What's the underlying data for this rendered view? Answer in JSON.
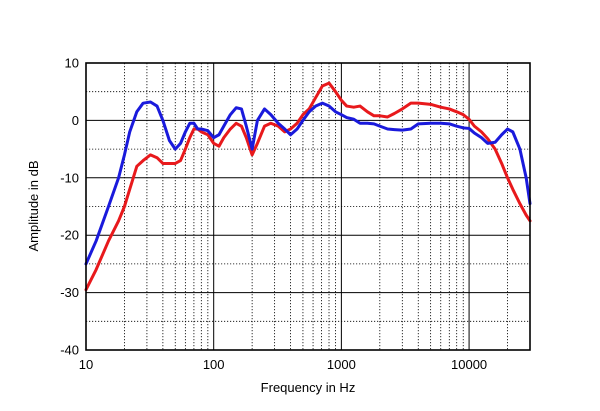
{
  "chart_data": {
    "type": "line",
    "xlabel": "Frequency in Hz",
    "ylabel": "Amplitude in dB",
    "x_scale": "log",
    "xlim": [
      10,
      30000
    ],
    "ylim": [
      -40,
      10
    ],
    "x_ticks": [
      10,
      100,
      1000,
      10000
    ],
    "x_tick_labels": [
      "10",
      "100",
      "1000",
      "10000"
    ],
    "y_ticks": [
      10,
      0,
      -10,
      -20,
      -30,
      -40
    ],
    "y_tick_labels": [
      "10",
      "0",
      "-10",
      "-20",
      "-30",
      "-40"
    ],
    "grid": true,
    "series": [
      {
        "color": "#e8191c",
        "x": [
          10,
          12,
          15,
          18,
          20,
          22,
          25,
          28,
          32,
          36,
          40,
          45,
          50,
          55,
          60,
          65,
          70,
          75,
          80,
          90,
          100,
          110,
          120,
          135,
          150,
          165,
          180,
          200,
          220,
          250,
          280,
          320,
          360,
          400,
          450,
          500,
          560,
          630,
          710,
          800,
          900,
          1000,
          1100,
          1250,
          1400,
          1600,
          1800,
          2000,
          2300,
          2600,
          3000,
          3500,
          4000,
          5000,
          6000,
          7000,
          8000,
          9000,
          10000,
          11000,
          12500,
          14000,
          16000,
          18000,
          20000,
          22000,
          25000,
          28000,
          30000
        ],
        "y": [
          -29.5,
          -26,
          -21,
          -17.5,
          -15,
          -12,
          -8,
          -7,
          -6,
          -6.5,
          -7.5,
          -7.5,
          -7.5,
          -7,
          -5,
          -3,
          -1.5,
          -1.5,
          -2,
          -2.5,
          -4,
          -4.5,
          -3,
          -1.5,
          -0.5,
          -1,
          -3,
          -6,
          -4,
          -1,
          -0.5,
          -1,
          -2,
          -1.5,
          -0.5,
          1,
          2,
          4,
          6,
          6.5,
          5,
          3.5,
          2.5,
          2.3,
          2.5,
          1.5,
          0.8,
          0.8,
          0.6,
          1.2,
          2,
          3,
          3,
          2.8,
          2.3,
          2,
          1.5,
          1,
          0.2,
          -1,
          -2,
          -3.2,
          -5,
          -7.5,
          -10,
          -12,
          -14.5,
          -16.5,
          -17.5
        ]
      },
      {
        "color": "#1a1adc",
        "x": [
          10,
          12,
          15,
          18,
          20,
          22,
          25,
          28,
          32,
          36,
          40,
          45,
          50,
          55,
          60,
          65,
          70,
          75,
          80,
          90,
          100,
          110,
          120,
          135,
          150,
          165,
          180,
          200,
          220,
          250,
          280,
          320,
          360,
          400,
          450,
          500,
          560,
          630,
          710,
          800,
          900,
          1000,
          1100,
          1250,
          1400,
          1600,
          1800,
          2000,
          2300,
          2600,
          3000,
          3500,
          4000,
          5000,
          6000,
          7000,
          8000,
          9000,
          10000,
          11000,
          12500,
          14000,
          16000,
          18000,
          20000,
          22000,
          25000,
          28000,
          30000
        ],
        "y": [
          -25,
          -21,
          -15,
          -10,
          -6,
          -2,
          1.5,
          3,
          3.2,
          2.5,
          0,
          -3.5,
          -5,
          -4,
          -2,
          -0.5,
          -0.5,
          -1.5,
          -1.5,
          -1.8,
          -3,
          -2.5,
          -1,
          1,
          2.2,
          2,
          -1,
          -5,
          0,
          2,
          1,
          -0.5,
          -1.5,
          -2.5,
          -1.5,
          0,
          1.5,
          2.5,
          3,
          2.5,
          1.5,
          1,
          0.5,
          0.2,
          -0.5,
          -0.5,
          -0.6,
          -1,
          -1.5,
          -1.6,
          -1.7,
          -1.5,
          -0.6,
          -0.5,
          -0.5,
          -0.6,
          -1,
          -1.3,
          -1.4,
          -2.2,
          -3,
          -4,
          -3.8,
          -2.5,
          -1.5,
          -2,
          -5,
          -10,
          -14.5
        ]
      }
    ]
  }
}
